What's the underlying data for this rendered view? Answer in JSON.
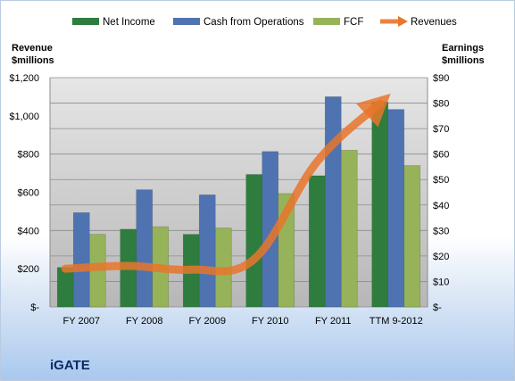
{
  "company": "iGATE",
  "chart_data": {
    "type": "bar",
    "categories": [
      "FY 2007",
      "FY 2008",
      "FY 2009",
      "FY 2010",
      "FY 2011",
      "TTM 9-2012"
    ],
    "left_axis": {
      "label_line1": "Revenue",
      "label_line2": "$millions",
      "range": [
        0,
        1200
      ],
      "ticks": [
        "$-",
        "$200",
        "$400",
        "$600",
        "$800",
        "$1,000",
        "$1,200"
      ]
    },
    "right_axis": {
      "label_line1": "Earnings",
      "label_line2": "$millions",
      "range": [
        0,
        90
      ],
      "ticks": [
        "$-",
        "$10",
        "$20",
        "$30",
        "$40",
        "$50",
        "$60",
        "$70",
        "$80",
        "$90"
      ]
    },
    "series": [
      {
        "name": "Net Income",
        "type": "bar",
        "axis": "right",
        "color": "#2e7d3e",
        "values": [
          15.5,
          30.5,
          28.5,
          52,
          51.5,
          80.5
        ]
      },
      {
        "name": "Cash from Operations",
        "type": "bar",
        "axis": "right",
        "color": "#4f73b0",
        "values": [
          37,
          46,
          44,
          61,
          82.5,
          77.5
        ]
      },
      {
        "name": "FCF",
        "type": "bar",
        "axis": "right",
        "color": "#97b35a",
        "values": [
          28.5,
          31.5,
          31,
          44.5,
          61.5,
          55.5
        ]
      },
      {
        "name": "Revenues",
        "type": "line",
        "axis": "left",
        "color": "#e8762b",
        "values": [
          200,
          215,
          195,
          250,
          760,
          1065
        ]
      }
    ],
    "grid": true,
    "legend": "top"
  }
}
